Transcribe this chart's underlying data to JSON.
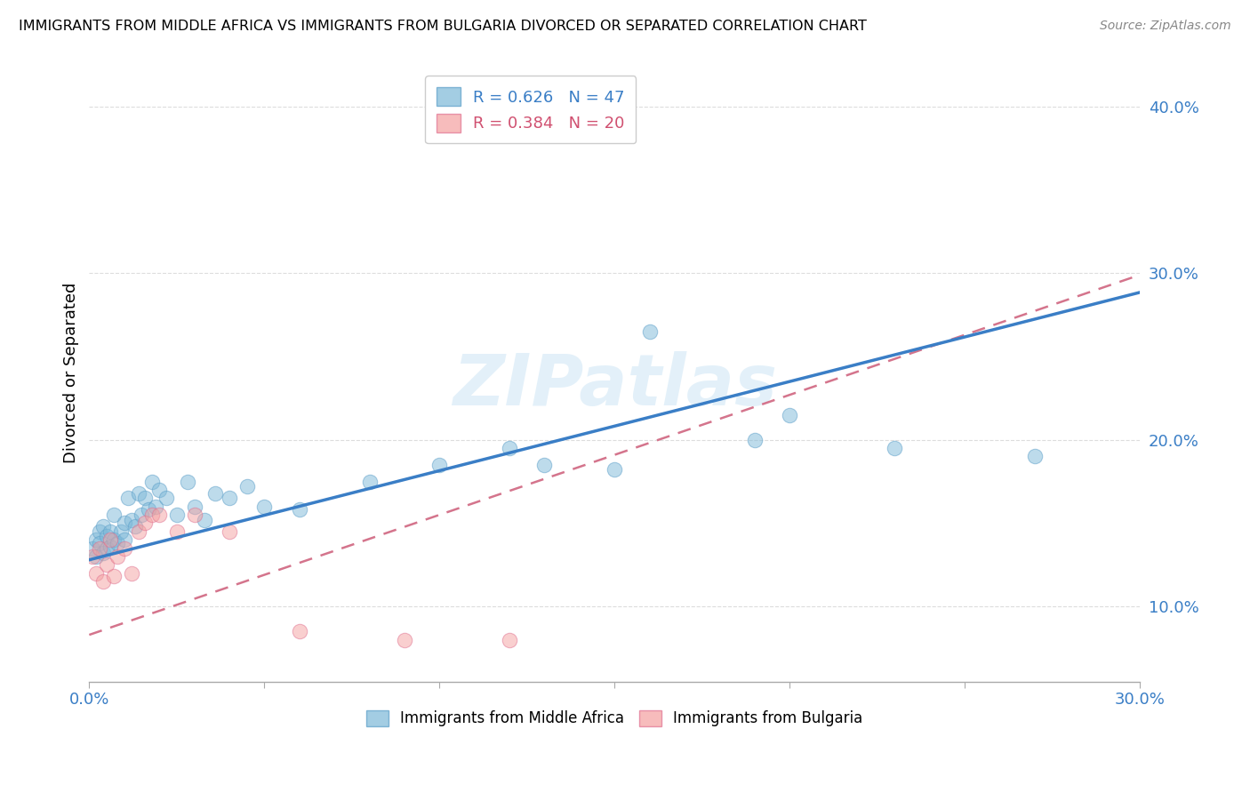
{
  "title": "IMMIGRANTS FROM MIDDLE AFRICA VS IMMIGRANTS FROM BULGARIA DIVORCED OR SEPARATED CORRELATION CHART",
  "source": "Source: ZipAtlas.com",
  "ylabel": "Divorced or Separated",
  "xlim": [
    0.0,
    0.3
  ],
  "ylim": [
    0.055,
    0.425
  ],
  "yticks": [
    0.1,
    0.2,
    0.3,
    0.4
  ],
  "ytick_labels": [
    "10.0%",
    "20.0%",
    "30.0%",
    "40.0%"
  ],
  "xticks": [
    0.0,
    0.05,
    0.1,
    0.15,
    0.2,
    0.25,
    0.3
  ],
  "xtick_labels": [
    "0.0%",
    "",
    "",
    "",
    "",
    "",
    "30.0%"
  ],
  "R_blue": 0.626,
  "N_blue": 47,
  "R_pink": 0.384,
  "N_pink": 20,
  "blue_color": "#7db8d8",
  "pink_color": "#f4a0a0",
  "blue_line_color": "#3a7ec6",
  "pink_line_color": "#d4748c",
  "watermark": "ZIPatlas",
  "blue_x": [
    0.001,
    0.002,
    0.002,
    0.003,
    0.003,
    0.004,
    0.004,
    0.005,
    0.005,
    0.006,
    0.006,
    0.007,
    0.007,
    0.008,
    0.009,
    0.01,
    0.01,
    0.011,
    0.012,
    0.013,
    0.014,
    0.015,
    0.016,
    0.017,
    0.018,
    0.019,
    0.02,
    0.022,
    0.025,
    0.028,
    0.03,
    0.033,
    0.036,
    0.04,
    0.045,
    0.05,
    0.06,
    0.08,
    0.1,
    0.12,
    0.13,
    0.15,
    0.16,
    0.19,
    0.2,
    0.23,
    0.27
  ],
  "blue_y": [
    0.135,
    0.14,
    0.13,
    0.145,
    0.138,
    0.132,
    0.148,
    0.135,
    0.142,
    0.136,
    0.145,
    0.14,
    0.155,
    0.138,
    0.145,
    0.15,
    0.14,
    0.165,
    0.152,
    0.148,
    0.168,
    0.155,
    0.165,
    0.158,
    0.175,
    0.16,
    0.17,
    0.165,
    0.155,
    0.175,
    0.16,
    0.152,
    0.168,
    0.165,
    0.172,
    0.16,
    0.158,
    0.175,
    0.185,
    0.195,
    0.185,
    0.182,
    0.265,
    0.2,
    0.215,
    0.195,
    0.19
  ],
  "pink_x": [
    0.001,
    0.002,
    0.003,
    0.004,
    0.005,
    0.006,
    0.007,
    0.008,
    0.01,
    0.012,
    0.014,
    0.016,
    0.018,
    0.02,
    0.025,
    0.03,
    0.04,
    0.06,
    0.09,
    0.12
  ],
  "pink_y": [
    0.13,
    0.12,
    0.135,
    0.115,
    0.125,
    0.14,
    0.118,
    0.13,
    0.135,
    0.12,
    0.145,
    0.15,
    0.155,
    0.155,
    0.145,
    0.155,
    0.145,
    0.085,
    0.08,
    0.08
  ]
}
